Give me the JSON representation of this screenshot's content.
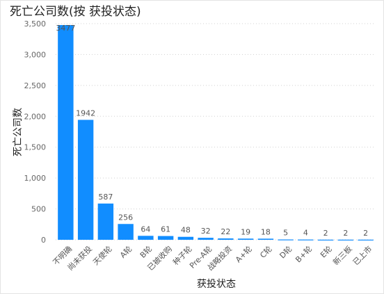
{
  "chart_data": {
    "type": "bar",
    "title": "死亡公司数(按 获投状态)",
    "xlabel": "获投状态",
    "ylabel": "死亡公司数",
    "ylim": [
      0,
      3500
    ],
    "yticks": [
      0,
      500,
      1000,
      1500,
      2000,
      2500,
      3000,
      3500
    ],
    "ytick_labels": [
      "0",
      "500",
      "1,000",
      "1,500",
      "2,000",
      "2,500",
      "3,000",
      "3,500"
    ],
    "categories": [
      "不明确",
      "尚未获投",
      "天使轮",
      "A轮",
      "B轮",
      "已被收购",
      "种子轮",
      "Pre-A轮",
      "战略投资",
      "A+轮",
      "C轮",
      "D轮",
      "B+轮",
      "E轮",
      "新三板",
      "已上市"
    ],
    "values": [
      3477,
      1942,
      587,
      256,
      64,
      61,
      48,
      32,
      22,
      19,
      18,
      5,
      4,
      2,
      2,
      2
    ],
    "data_labels": [
      "3477",
      "1942",
      "587",
      "256",
      "64",
      "61",
      "48",
      "32",
      "22",
      "19",
      "18",
      "5",
      "4",
      "2",
      "2",
      "2"
    ],
    "grid": true,
    "bar_color": "#118DFF"
  }
}
